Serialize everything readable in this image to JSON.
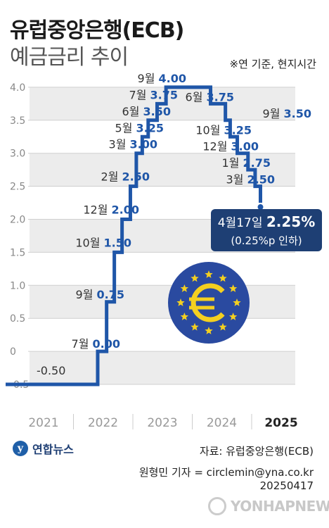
{
  "chart_data": {
    "type": "step-line",
    "title": "유럽중앙은행(ECB)",
    "subtitle": "예금금리 추이",
    "note": "※연 기준, 현지시간",
    "ylim": [
      -0.5,
      4.0
    ],
    "yticks": [
      "4.0",
      "3.5",
      "3.0",
      "2.5",
      "2.0",
      "1.5",
      "1.0",
      "0.5",
      "0",
      "-0.5"
    ],
    "xticks": [
      "2021",
      "2022",
      "2023",
      "2024",
      "2025"
    ],
    "start_label": "-0.50",
    "series": [
      {
        "values": [
          {
            "t": 0.0,
            "v": -0.5
          },
          {
            "t": 1.55,
            "v": 0.0
          },
          {
            "t": 1.7,
            "v": 0.75
          },
          {
            "t": 1.83,
            "v": 1.5
          },
          {
            "t": 1.96,
            "v": 2.0
          },
          {
            "t": 2.1,
            "v": 2.5
          },
          {
            "t": 2.2,
            "v": 3.0
          },
          {
            "t": 2.3,
            "v": 3.25
          },
          {
            "t": 2.4,
            "v": 3.5
          },
          {
            "t": 2.55,
            "v": 3.75
          },
          {
            "t": 2.7,
            "v": 4.0
          },
          {
            "t": 3.45,
            "v": 3.75
          },
          {
            "t": 3.7,
            "v": 3.5
          },
          {
            "t": 3.78,
            "v": 3.25
          },
          {
            "t": 3.9,
            "v": 3.0
          },
          {
            "t": 4.08,
            "v": 2.75
          },
          {
            "t": 4.2,
            "v": 2.5
          },
          {
            "t": 4.29,
            "v": 2.25
          }
        ]
      }
    ],
    "rise_labels": [
      {
        "month": "7월",
        "value": "0.00",
        "v": 0.0
      },
      {
        "month": "9월",
        "value": "0.75",
        "v": 0.75
      },
      {
        "month": "10월",
        "value": "1.50",
        "v": 1.5
      },
      {
        "month": "12월",
        "value": "2.00",
        "v": 2.0
      },
      {
        "month": "2월",
        "value": "2.50",
        "v": 2.5
      },
      {
        "month": "3월",
        "value": "3.00",
        "v": 3.0
      },
      {
        "month": "5월",
        "value": "3.25",
        "v": 3.25
      },
      {
        "month": "6월",
        "value": "3.50",
        "v": 3.5
      },
      {
        "month": "7월",
        "value": "3.75",
        "v": 3.75
      },
      {
        "month": "9월",
        "value": "4.00",
        "v": 4.0
      }
    ],
    "fall_labels": [
      {
        "month": "6월",
        "value": "3.75",
        "v": 3.75
      },
      {
        "month": "9월",
        "value": "3.50",
        "v": 3.5
      },
      {
        "month": "10월",
        "value": "3.25",
        "v": 3.25
      },
      {
        "month": "12월",
        "value": "3.00",
        "v": 3.0
      },
      {
        "month": "1월",
        "value": "2.75",
        "v": 2.75
      },
      {
        "month": "3월",
        "value": "2.50",
        "v": 2.5
      }
    ],
    "callout": {
      "date": "4월17일",
      "value": "2.25%",
      "sub": "(0.25%p 인하)"
    }
  },
  "colors": {
    "line": "#1f56a8",
    "bar_fill": "#ececec",
    "value_text": "#1f56a8",
    "callout_bg": "#1e3f74",
    "emblem": "#2a4aa0",
    "star": "#f4d020"
  },
  "emblem": {
    "icon": "euro-icon"
  },
  "footer": {
    "logo_text": "연합뉴스",
    "source": "자료: 유럽중앙은행(ECB)",
    "reporter": "원형민 기자 = circlemin@yna.co.kr",
    "date": "20250417",
    "watermark": "YONHAPNEWS"
  }
}
